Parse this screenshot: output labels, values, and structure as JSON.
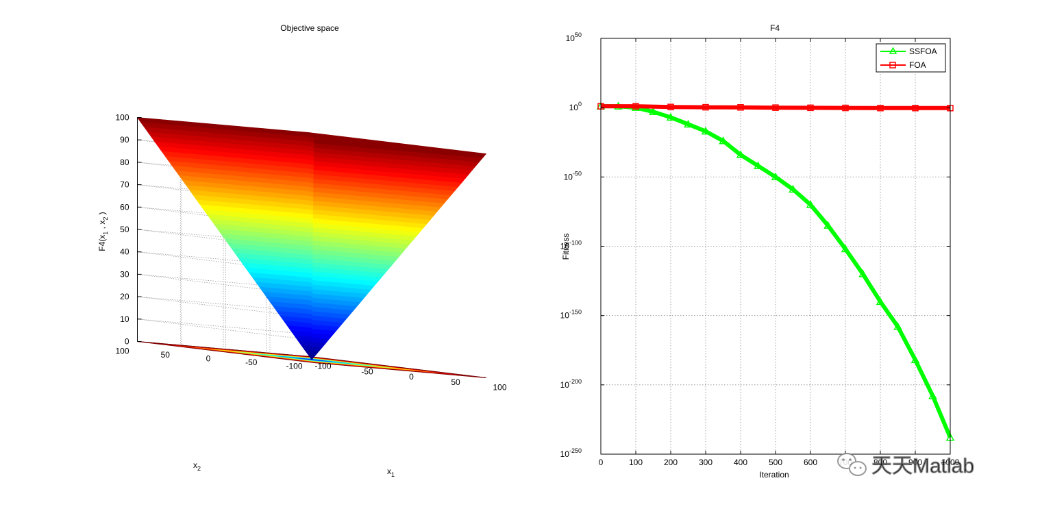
{
  "chart_data": [
    {
      "type": "surface3d",
      "title": "Objective space",
      "zlabel": "F4(x1 , x2 )",
      "zlabel_parts": {
        "prefix": "F4(x",
        "sub1": "1",
        "mid": " , x",
        "sub2": "2",
        "suffix": " )"
      },
      "xlabel": {
        "base": "x",
        "sub": "1"
      },
      "ylabel": {
        "base": "x",
        "sub": "2"
      },
      "x_ticks": [
        "-100",
        "-50",
        "0",
        "50",
        "100"
      ],
      "y_ticks": [
        "-100",
        "-50",
        "0",
        "50",
        "100"
      ],
      "z_ticks": [
        "0",
        "10",
        "20",
        "30",
        "40",
        "50",
        "60",
        "70",
        "80",
        "90",
        "100"
      ],
      "xlim": [
        -100,
        100
      ],
      "ylim": [
        -100,
        100
      ],
      "zlim": [
        0,
        100
      ],
      "function": "max(|x1|, |x2|)",
      "colormap": "jet",
      "contour_levels": [
        10,
        20,
        30,
        40,
        50,
        60,
        70,
        80,
        90,
        100
      ],
      "grid": true
    },
    {
      "type": "line",
      "title": "F4",
      "xlabel": "Iteration",
      "ylabel": "Fitness",
      "yscale": "log",
      "xlim": [
        0,
        1000
      ],
      "ylim_exp": [
        -250,
        50
      ],
      "x_ticks": [
        "0",
        "100",
        "200",
        "300",
        "400",
        "500",
        "600",
        "700",
        "800",
        "900",
        "1000"
      ],
      "y_ticks": [
        {
          "base": "10",
          "exp": "50"
        },
        {
          "base": "10",
          "exp": "0"
        },
        {
          "base": "10",
          "exp": "-50"
        },
        {
          "base": "10",
          "exp": "-100"
        },
        {
          "base": "10",
          "exp": "-150"
        },
        {
          "base": "10",
          "exp": "-200"
        },
        {
          "base": "10",
          "exp": "-250"
        }
      ],
      "grid": true,
      "legend_position": "top-right",
      "series": [
        {
          "name": "SSFOA",
          "color": "#00ff00",
          "marker": "triangle",
          "x": [
            0,
            50,
            100,
            150,
            200,
            250,
            300,
            350,
            400,
            450,
            500,
            550,
            600,
            650,
            700,
            750,
            800,
            850,
            900,
            950,
            1000
          ],
          "log10_y": [
            1,
            1,
            0,
            -3,
            -7,
            -12,
            -17,
            -24,
            -34,
            -42,
            -50,
            -59,
            -70,
            -85,
            -102,
            -120,
            -140,
            -158,
            -182,
            -208,
            -238
          ]
        },
        {
          "name": "FOA",
          "color": "#ff0000",
          "marker": "square",
          "x": [
            0,
            100,
            200,
            300,
            400,
            500,
            600,
            700,
            800,
            900,
            1000
          ],
          "log10_y": [
            1,
            1,
            0.5,
            0.3,
            0.2,
            0,
            -0.1,
            -0.2,
            -0.3,
            -0.3,
            -0.3
          ]
        }
      ]
    }
  ],
  "watermark": {
    "text": "天天Matlab"
  }
}
